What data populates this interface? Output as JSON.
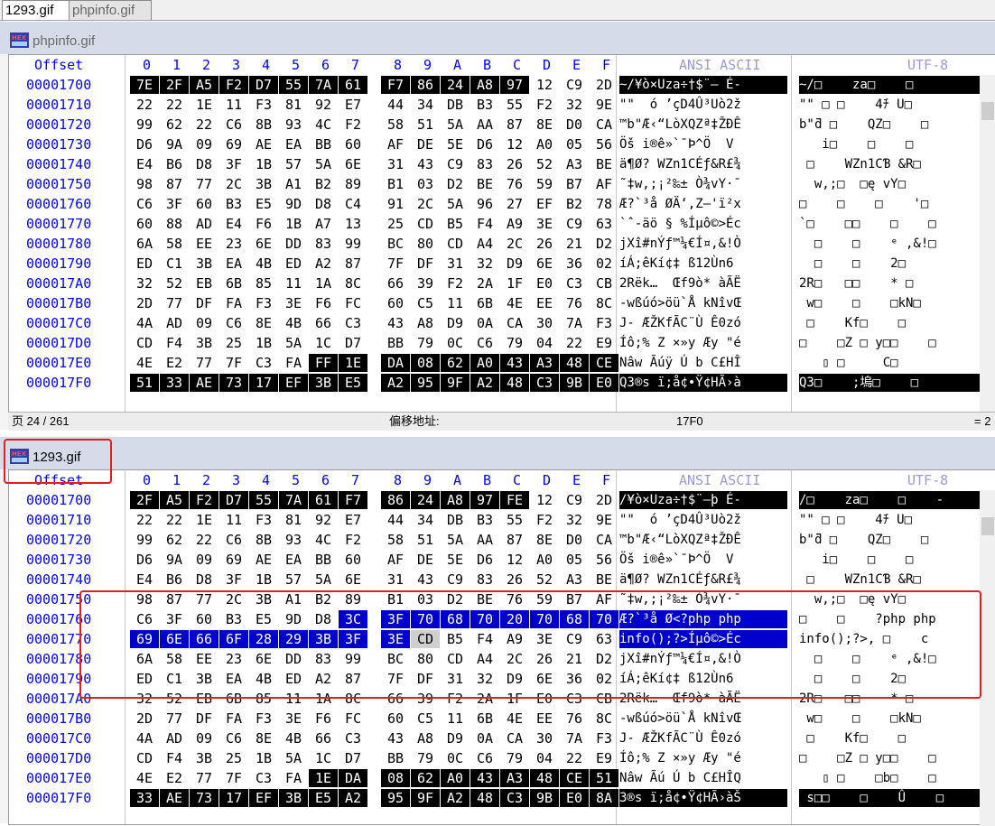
{
  "tabs": [
    "1293.gif",
    "phpinfo.gif"
  ],
  "top_pane": {
    "file_name": "phpinfo.gif",
    "header": {
      "offset_label": "Offset",
      "columns": [
        "0",
        "1",
        "2",
        "3",
        "4",
        "5",
        "6",
        "7",
        "8",
        "9",
        "A",
        "B",
        "C",
        "D",
        "E",
        "F"
      ],
      "ansi_label": "ANSI ASCII",
      "utf8_label": "UTF-8"
    },
    "rows": [
      {
        "offset": "00001700",
        "hex": [
          "7E",
          "2F",
          "A5",
          "F2",
          "D7",
          "55",
          "7A",
          "61",
          "F7",
          "86",
          "24",
          "A8",
          "97",
          "12",
          "C9",
          "2D"
        ],
        "ansi": "~/¥ò×Uza÷†$¨— É-",
        "utf8": "~/□    za□    □"
      },
      {
        "offset": "00001710",
        "hex": [
          "22",
          "22",
          "1E",
          "11",
          "F3",
          "81",
          "92",
          "E7",
          "44",
          "34",
          "DB",
          "B3",
          "55",
          "F2",
          "32",
          "9E"
        ],
        "ansi": "\"\"  ó ’çD4Û³Uò2ž",
        "utf8": "\"\" □ □    4ﾁ U□"
      },
      {
        "offset": "00001720",
        "hex": [
          "99",
          "62",
          "22",
          "C6",
          "8B",
          "93",
          "4C",
          "F2",
          "58",
          "51",
          "5A",
          "AA",
          "87",
          "8E",
          "D0",
          "CA"
        ],
        "ansi": "™b\"Æ‹“LòXQZª‡ŽÐÊ",
        "utf8": "b\"ƌ □    QZ□    □"
      },
      {
        "offset": "00001730",
        "hex": [
          "D6",
          "9A",
          "09",
          "69",
          "AE",
          "EA",
          "BB",
          "60",
          "AF",
          "DE",
          "5E",
          "D6",
          "12",
          "A0",
          "05",
          "56"
        ],
        "ansi": "Öš i®ê»`¯Þ^Ö  V",
        "utf8": "   i□    □    □"
      },
      {
        "offset": "00001740",
        "hex": [
          "E4",
          "B6",
          "D8",
          "3F",
          "1B",
          "57",
          "5A",
          "6E",
          "31",
          "43",
          "C9",
          "83",
          "26",
          "52",
          "A3",
          "BE"
        ],
        "ansi": "ä¶Ø? WZn1CÉƒ&R£¾",
        "utf8": " □    WZn1CƁ &R□"
      },
      {
        "offset": "00001750",
        "hex": [
          "98",
          "87",
          "77",
          "2C",
          "3B",
          "A1",
          "B2",
          "89",
          "B1",
          "03",
          "D2",
          "BE",
          "76",
          "59",
          "B7",
          "AF"
        ],
        "ansi": "˜‡w,;¡²‰± Ò¾vY·¯",
        "utf8": "  w,;□  □ę vY□"
      },
      {
        "offset": "00001760",
        "hex": [
          "C6",
          "3F",
          "60",
          "B3",
          "E5",
          "9D",
          "D8",
          "C4",
          "91",
          "2C",
          "5A",
          "96",
          "27",
          "EF",
          "B2",
          "78"
        ],
        "ansi": "Æ?`³å ØÄ‘,Z–'ï²x",
        "utf8": "□    □    □    '□"
      },
      {
        "offset": "00001770",
        "hex": [
          "60",
          "88",
          "AD",
          "E4",
          "F6",
          "1B",
          "A7",
          "13",
          "25",
          "CD",
          "B5",
          "F4",
          "A9",
          "3E",
          "C9",
          "63"
        ],
        "ansi": "`ˆ-äö § %Íµô©>Éc",
        "utf8": "`□    □□    □    □"
      },
      {
        "offset": "00001780",
        "hex": [
          "6A",
          "58",
          "EE",
          "23",
          "6E",
          "DD",
          "83",
          "99",
          "BC",
          "80",
          "CD",
          "A4",
          "2C",
          "26",
          "21",
          "D2"
        ],
        "ansi": "jXî#nÝƒ™¼€Í¤,&!Ò",
        "utf8": "  □    □    ᵉ ,&!□"
      },
      {
        "offset": "00001790",
        "hex": [
          "ED",
          "C1",
          "3B",
          "EA",
          "4B",
          "ED",
          "A2",
          "87",
          "7F",
          "DF",
          "31",
          "32",
          "D9",
          "6E",
          "36",
          "02"
        ],
        "ansi": "íÁ;êKí¢‡ ß12Ùn6 ",
        "utf8": "  □    □    2□"
      },
      {
        "offset": "000017A0",
        "hex": [
          "32",
          "52",
          "EB",
          "6B",
          "85",
          "11",
          "1A",
          "8C",
          "66",
          "39",
          "F2",
          "2A",
          "1F",
          "E0",
          "C3",
          "CB"
        ],
        "ansi": "2Rëk…  Œf9ò* àÃË",
        "utf8": "2R□   □□    * □"
      },
      {
        "offset": "000017B0",
        "hex": [
          "2D",
          "77",
          "DF",
          "FA",
          "F3",
          "3E",
          "F6",
          "FC",
          "60",
          "C5",
          "11",
          "6B",
          "4E",
          "EE",
          "76",
          "8C"
        ],
        "ansi": "-wßúó>öü`Å kNîvŒ",
        "utf8": " w□    □    □kN□"
      },
      {
        "offset": "000017C0",
        "hex": [
          "4A",
          "AD",
          "09",
          "C6",
          "8E",
          "4B",
          "66",
          "C3",
          "43",
          "A8",
          "D9",
          "0A",
          "CA",
          "30",
          "7A",
          "F3"
        ],
        "ansi": "J- ÆŽKfÃC¨Ù Ê0zó",
        "utf8": " □    Kf□    □"
      },
      {
        "offset": "000017D0",
        "hex": [
          "CD",
          "F4",
          "3B",
          "25",
          "1B",
          "5A",
          "1C",
          "D7",
          "BB",
          "79",
          "0C",
          "C6",
          "79",
          "04",
          "22",
          "E9"
        ],
        "ansi": "Íô;% Z ×»y Æy \"é",
        "utf8": "□    □Z □ y□□    □"
      },
      {
        "offset": "000017E0",
        "hex": [
          "4E",
          "E2",
          "77",
          "7F",
          "C3",
          "FA",
          "FF",
          "1E",
          "DA",
          "08",
          "62",
          "A0",
          "43",
          "A3",
          "48",
          "CE"
        ],
        "ansi": "Nâw Ãúÿ Ú b C£HÎ",
        "utf8": "   ▯ □     C□"
      },
      {
        "offset": "000017F0",
        "hex": [
          "51",
          "33",
          "AE",
          "73",
          "17",
          "EF",
          "3B",
          "E5",
          "A2",
          "95",
          "9F",
          "A2",
          "48",
          "C3",
          "9B",
          "E0"
        ],
        "ansi": "Q3®s ï;å¢•Ÿ¢HÃ›à",
        "utf8": "Q3□    ;塢□    □"
      }
    ],
    "status": {
      "page": "页 24 / 261",
      "offset_label": "偏移地址:",
      "offset_value": "17F0",
      "right": "= 2"
    }
  },
  "bottom_pane": {
    "file_name": "1293.gif",
    "header": {
      "offset_label": "Offset",
      "columns": [
        "0",
        "1",
        "2",
        "3",
        "4",
        "5",
        "6",
        "7",
        "8",
        "9",
        "A",
        "B",
        "C",
        "D",
        "E",
        "F"
      ],
      "ansi_label": "ANSI ASCII",
      "utf8_label": "UTF-8"
    },
    "rows": [
      {
        "offset": "00001700",
        "hex": [
          "2F",
          "A5",
          "F2",
          "D7",
          "55",
          "7A",
          "61",
          "F7",
          "86",
          "24",
          "A8",
          "97",
          "FE",
          "12",
          "C9",
          "2D"
        ],
        "ansi": "/¥ò×Uza÷†$¨—þ É-",
        "utf8": "/□    za□    □    -"
      },
      {
        "offset": "00001710",
        "hex": [
          "22",
          "22",
          "1E",
          "11",
          "F3",
          "81",
          "92",
          "E7",
          "44",
          "34",
          "DB",
          "B3",
          "55",
          "F2",
          "32",
          "9E"
        ],
        "ansi": "\"\"  ó ’çD4Û³Uò2ž",
        "utf8": "\"\" □ □    4ﾁ U□"
      },
      {
        "offset": "00001720",
        "hex": [
          "99",
          "62",
          "22",
          "C6",
          "8B",
          "93",
          "4C",
          "F2",
          "58",
          "51",
          "5A",
          "AA",
          "87",
          "8E",
          "D0",
          "CA"
        ],
        "ansi": "™b\"Æ‹“LòXQZª‡ŽÐÊ",
        "utf8": "b\"ƌ □    QZ□    □"
      },
      {
        "offset": "00001730",
        "hex": [
          "D6",
          "9A",
          "09",
          "69",
          "AE",
          "EA",
          "BB",
          "60",
          "AF",
          "DE",
          "5E",
          "D6",
          "12",
          "A0",
          "05",
          "56"
        ],
        "ansi": "Öš i®ê»`¯Þ^Ö  V",
        "utf8": "   i□    □    □"
      },
      {
        "offset": "00001740",
        "hex": [
          "E4",
          "B6",
          "D8",
          "3F",
          "1B",
          "57",
          "5A",
          "6E",
          "31",
          "43",
          "C9",
          "83",
          "26",
          "52",
          "A3",
          "BE"
        ],
        "ansi": "ä¶Ø? WZn1CÉƒ&R£¾",
        "utf8": " □    WZn1CƁ &R□"
      },
      {
        "offset": "00001750",
        "hex": [
          "98",
          "87",
          "77",
          "2C",
          "3B",
          "A1",
          "B2",
          "89",
          "B1",
          "03",
          "D2",
          "BE",
          "76",
          "59",
          "B7",
          "AF"
        ],
        "ansi": "˜‡w,;¡²‰± Ò¾vY·¯",
        "utf8": "  w,;□  □ę vY□"
      },
      {
        "offset": "00001760",
        "hex": [
          "C6",
          "3F",
          "60",
          "B3",
          "E5",
          "9D",
          "D8",
          "3C",
          "3F",
          "70",
          "68",
          "70",
          "20",
          "70",
          "68",
          "70"
        ],
        "ansi": "Æ?`³å Ø<?php php",
        "utf8": "□    □    ?php php"
      },
      {
        "offset": "00001770",
        "hex": [
          "69",
          "6E",
          "66",
          "6F",
          "28",
          "29",
          "3B",
          "3F",
          "3E",
          "CD",
          "B5",
          "F4",
          "A9",
          "3E",
          "C9",
          "63"
        ],
        "ansi": "info();?>Íµô©>Éc",
        "utf8": "info();?>, □    c"
      },
      {
        "offset": "00001780",
        "hex": [
          "6A",
          "58",
          "EE",
          "23",
          "6E",
          "DD",
          "83",
          "99",
          "BC",
          "80",
          "CD",
          "A4",
          "2C",
          "26",
          "21",
          "D2"
        ],
        "ansi": "jXî#nÝƒ™¼€Í¤,&!Ò",
        "utf8": "  □    □    ᵉ ,&!□"
      },
      {
        "offset": "00001790",
        "hex": [
          "ED",
          "C1",
          "3B",
          "EA",
          "4B",
          "ED",
          "A2",
          "87",
          "7F",
          "DF",
          "31",
          "32",
          "D9",
          "6E",
          "36",
          "02"
        ],
        "ansi": "íÁ;êKí¢‡ ß12Ùn6 ",
        "utf8": "  □    □    2□"
      },
      {
        "offset": "000017A0",
        "hex": [
          "32",
          "52",
          "EB",
          "6B",
          "85",
          "11",
          "1A",
          "8C",
          "66",
          "39",
          "F2",
          "2A",
          "1F",
          "E0",
          "C3",
          "CB"
        ],
        "ansi": "2Rëk…  Œf9ò* àÃË",
        "utf8": "2R□   □□    * □"
      },
      {
        "offset": "000017B0",
        "hex": [
          "2D",
          "77",
          "DF",
          "FA",
          "F3",
          "3E",
          "F6",
          "FC",
          "60",
          "C5",
          "11",
          "6B",
          "4E",
          "EE",
          "76",
          "8C"
        ],
        "ansi": "-wßúó>öü`Å kNîvŒ",
        "utf8": " w□    □    □kN□"
      },
      {
        "offset": "000017C0",
        "hex": [
          "4A",
          "AD",
          "09",
          "C6",
          "8E",
          "4B",
          "66",
          "C3",
          "43",
          "A8",
          "D9",
          "0A",
          "CA",
          "30",
          "7A",
          "F3"
        ],
        "ansi": "J- ÆŽKfÃC¨Ù Ê0zó",
        "utf8": " □    Kf□    □"
      },
      {
        "offset": "000017D0",
        "hex": [
          "CD",
          "F4",
          "3B",
          "25",
          "1B",
          "5A",
          "1C",
          "D7",
          "BB",
          "79",
          "0C",
          "C6",
          "79",
          "04",
          "22",
          "E9"
        ],
        "ansi": "Íô;% Z ×»y Æy \"é",
        "utf8": "□    □Z □ y□□    □"
      },
      {
        "offset": "000017E0",
        "hex": [
          "4E",
          "E2",
          "77",
          "7F",
          "C3",
          "FA",
          "1E",
          "DA",
          "08",
          "62",
          "A0",
          "43",
          "A3",
          "48",
          "CE",
          "51"
        ],
        "ansi": "Nâw Ãú Ú b C£HÎQ",
        "utf8": "   ▯ □    □b□    □"
      },
      {
        "offset": "000017F0",
        "hex": [
          "33",
          "AE",
          "73",
          "17",
          "EF",
          "3B",
          "E5",
          "A2",
          "95",
          "9F",
          "A2",
          "48",
          "C3",
          "9B",
          "E0",
          "8A"
        ],
        "ansi": "3®s ï;å¢•Ÿ¢HÃ›àŠ",
        "utf8": " s□□    □    Û    □"
      }
    ]
  },
  "colors": {
    "offset_blue": "#0000ff",
    "selection_black": "#000000",
    "highlight_blue": "#0000cc",
    "annotation_red": "#e02020"
  }
}
